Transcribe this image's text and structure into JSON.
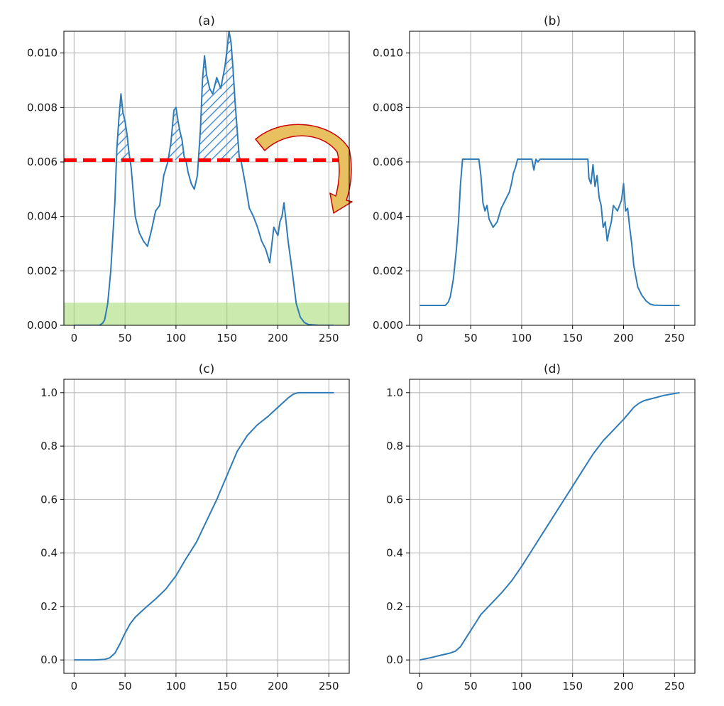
{
  "chart_data": [
    {
      "id": "a",
      "type": "line",
      "title": "(a)",
      "xlim": [
        -10,
        270
      ],
      "ylim": [
        0,
        0.0108
      ],
      "xticks": [
        0,
        50,
        100,
        150,
        200,
        250
      ],
      "xtick_labels": [
        "0",
        "50",
        "100",
        "150",
        "200",
        "250"
      ],
      "yticks": [
        0.0,
        0.002,
        0.004,
        0.006,
        0.008,
        0.01
      ],
      "ytick_labels": [
        "0.000",
        "0.002",
        "0.004",
        "0.006",
        "0.008",
        "0.010"
      ],
      "grid": true,
      "clip_limit": 0.00607,
      "redistribution_band": [
        0,
        0.00083
      ],
      "colors": {
        "line": "#2f7bb8",
        "clip_line": "#ff0000",
        "hatch": "#4a90d9",
        "band": "#9fd96b",
        "arrow_fill": "#e8c060",
        "arrow_edge": "#cc0000"
      },
      "series": [
        {
          "x": [
            0,
            25,
            28,
            30,
            33,
            36,
            40,
            42,
            44,
            46,
            48,
            50,
            52,
            54,
            56,
            58,
            60,
            64,
            68,
            72,
            76,
            80,
            84,
            88,
            92,
            95,
            98,
            100,
            102,
            104,
            106,
            108,
            110,
            112,
            115,
            118,
            121,
            124,
            126,
            128,
            130,
            133,
            136,
            140,
            144,
            148,
            150,
            152,
            154,
            156,
            158,
            160,
            162,
            164,
            168,
            172,
            176,
            180,
            184,
            188,
            192,
            196,
            200,
            202,
            204,
            206,
            208,
            210,
            214,
            218,
            222,
            226,
            230,
            240,
            255
          ],
          "y": [
            0.0,
            0.0,
            8e-05,
            0.0002,
            0.0008,
            0.002,
            0.0045,
            0.0065,
            0.0076,
            0.0085,
            0.0078,
            0.0075,
            0.007,
            0.0063,
            0.0058,
            0.0049,
            0.004,
            0.0034,
            0.0031,
            0.0029,
            0.0035,
            0.0042,
            0.0044,
            0.0055,
            0.006,
            0.0067,
            0.0079,
            0.008,
            0.0075,
            0.0071,
            0.0068,
            0.0062,
            0.006,
            0.0056,
            0.0052,
            0.005,
            0.0055,
            0.0072,
            0.009,
            0.0099,
            0.0092,
            0.0087,
            0.0085,
            0.0091,
            0.0087,
            0.0095,
            0.0101,
            0.0108,
            0.0104,
            0.0094,
            0.0082,
            0.0072,
            0.0062,
            0.006,
            0.0052,
            0.0043,
            0.004,
            0.0036,
            0.0031,
            0.0028,
            0.0023,
            0.0036,
            0.0033,
            0.0038,
            0.004,
            0.0045,
            0.0038,
            0.0031,
            0.002,
            0.0008,
            0.0003,
            0.0001,
            3e-05,
            0.0,
            0.0
          ]
        }
      ]
    },
    {
      "id": "b",
      "type": "line",
      "title": "(b)",
      "xlim": [
        -10,
        270
      ],
      "ylim": [
        0,
        0.0108
      ],
      "xticks": [
        0,
        50,
        100,
        150,
        200,
        250
      ],
      "xtick_labels": [
        "0",
        "50",
        "100",
        "150",
        "200",
        "250"
      ],
      "yticks": [
        0.0,
        0.002,
        0.004,
        0.006,
        0.008,
        0.01
      ],
      "ytick_labels": [
        "0.000",
        "0.002",
        "0.004",
        "0.006",
        "0.008",
        "0.010"
      ],
      "grid": true,
      "colors": {
        "line": "#2f7bb8"
      },
      "series": [
        {
          "x": [
            0,
            25,
            28,
            30,
            33,
            36,
            38,
            40,
            42,
            58,
            60,
            62,
            64,
            66,
            68,
            72,
            76,
            80,
            84,
            88,
            90,
            92,
            94,
            96,
            110,
            112,
            114,
            116,
            118,
            130,
            150,
            165,
            166,
            168,
            170,
            172,
            174,
            176,
            178,
            180,
            182,
            184,
            186,
            188,
            190,
            192,
            194,
            196,
            198,
            200,
            202,
            204,
            206,
            208,
            210,
            212,
            214,
            218,
            222,
            226,
            230,
            240,
            255
          ],
          "y": [
            0.00073,
            0.00073,
            0.00085,
            0.00105,
            0.0017,
            0.0028,
            0.0038,
            0.0052,
            0.0061,
            0.0061,
            0.0055,
            0.0045,
            0.0042,
            0.0044,
            0.0039,
            0.0036,
            0.0038,
            0.0043,
            0.0046,
            0.0049,
            0.0052,
            0.0056,
            0.0058,
            0.0061,
            0.0061,
            0.0057,
            0.0061,
            0.006,
            0.0061,
            0.0061,
            0.0061,
            0.0061,
            0.0054,
            0.0052,
            0.0059,
            0.0051,
            0.0055,
            0.0047,
            0.0044,
            0.0036,
            0.0038,
            0.0031,
            0.0035,
            0.0038,
            0.0044,
            0.0043,
            0.0042,
            0.0044,
            0.0046,
            0.0052,
            0.0042,
            0.0043,
            0.0036,
            0.003,
            0.0022,
            0.0018,
            0.0014,
            0.0011,
            0.0009,
            0.00078,
            0.00074,
            0.00073,
            0.00073
          ]
        }
      ]
    },
    {
      "id": "c",
      "type": "line",
      "title": "(c)",
      "xlim": [
        -10,
        270
      ],
      "ylim": [
        -0.05,
        1.05
      ],
      "xticks": [
        0,
        50,
        100,
        150,
        200,
        250
      ],
      "xtick_labels": [
        "0",
        "50",
        "100",
        "150",
        "200",
        "250"
      ],
      "yticks": [
        0.0,
        0.2,
        0.4,
        0.6,
        0.8,
        1.0
      ],
      "ytick_labels": [
        "0.0",
        "0.2",
        "0.4",
        "0.6",
        "0.8",
        "1.0"
      ],
      "grid": true,
      "colors": {
        "line": "#2f7bb8"
      },
      "series": [
        {
          "x": [
            0,
            20,
            30,
            35,
            40,
            45,
            50,
            55,
            60,
            70,
            80,
            90,
            100,
            110,
            120,
            130,
            140,
            150,
            160,
            170,
            180,
            190,
            200,
            210,
            215,
            220,
            225,
            230,
            240,
            255
          ],
          "y": [
            0.0,
            0.0,
            0.002,
            0.008,
            0.025,
            0.06,
            0.1,
            0.135,
            0.16,
            0.195,
            0.228,
            0.265,
            0.315,
            0.38,
            0.44,
            0.52,
            0.6,
            0.69,
            0.78,
            0.84,
            0.88,
            0.91,
            0.945,
            0.98,
            0.994,
            1.0,
            1.0,
            1.0,
            1.0,
            1.0
          ]
        }
      ]
    },
    {
      "id": "d",
      "type": "line",
      "title": "(d)",
      "xlim": [
        -10,
        270
      ],
      "ylim": [
        -0.05,
        1.05
      ],
      "xticks": [
        0,
        50,
        100,
        150,
        200,
        250
      ],
      "xtick_labels": [
        "0",
        "50",
        "100",
        "150",
        "200",
        "250"
      ],
      "yticks": [
        0.0,
        0.2,
        0.4,
        0.6,
        0.8,
        1.0
      ],
      "ytick_labels": [
        "0.0",
        "0.2",
        "0.4",
        "0.6",
        "0.8",
        "1.0"
      ],
      "grid": true,
      "colors": {
        "line": "#2f7bb8"
      },
      "series": [
        {
          "x": [
            0,
            10,
            20,
            30,
            35,
            40,
            45,
            50,
            55,
            60,
            70,
            80,
            90,
            100,
            110,
            120,
            130,
            140,
            150,
            160,
            170,
            180,
            190,
            200,
            210,
            215,
            220,
            230,
            240,
            255
          ],
          "y": [
            0.0,
            0.008,
            0.017,
            0.026,
            0.033,
            0.05,
            0.08,
            0.11,
            0.14,
            0.17,
            0.21,
            0.25,
            0.295,
            0.35,
            0.41,
            0.47,
            0.53,
            0.59,
            0.65,
            0.71,
            0.77,
            0.82,
            0.86,
            0.9,
            0.945,
            0.96,
            0.97,
            0.98,
            0.99,
            1.0
          ]
        }
      ]
    }
  ]
}
